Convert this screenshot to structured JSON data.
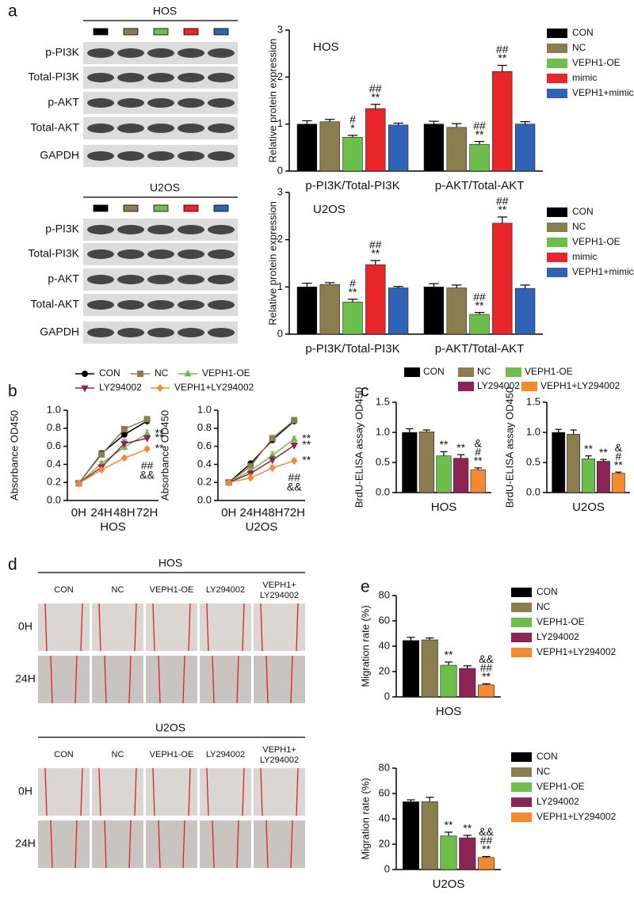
{
  "panel_labels": [
    "a",
    "b",
    "c",
    "d",
    "e"
  ],
  "western_blots": [
    {
      "title": "HOS",
      "rows": [
        "p-PI3K",
        "Total-PI3K",
        "p-AKT",
        "Total-AKT",
        "GAPDH"
      ]
    },
    {
      "title": "U2OS",
      "rows": [
        "p-PI3K",
        "Total-PI3K",
        "p-AKT",
        "Total-AKT",
        "GAPDH"
      ]
    }
  ],
  "wound_assay": [
    {
      "title": "HOS",
      "columns": [
        "CON",
        "NC",
        "VEPH1-OE",
        "LY294002",
        [
          "VEPH1+",
          "LY294002"
        ]
      ],
      "rows": [
        "0H",
        "24H"
      ]
    },
    {
      "title": "U2OS",
      "columns": [
        "CON",
        "NC",
        "VEPH1-OE",
        "LY294002",
        [
          "VEPH1+",
          "LY294002"
        ]
      ],
      "rows": [
        "0H",
        "24H"
      ]
    }
  ],
  "chart_data": [
    {
      "type": "bar",
      "annotation": "HOS",
      "ylabel": "Relative protein expression",
      "categories": [
        "p-PI3K/Total-PI3K",
        "p-AKT/Total-AKT"
      ],
      "ylim": [
        0,
        3
      ],
      "yticks": [
        0,
        1,
        2,
        3
      ],
      "legend": "right",
      "series": [
        {
          "name": "CON",
          "color": "#000000",
          "values": [
            1.0,
            1.0
          ],
          "errors": [
            0.07,
            0.06
          ]
        },
        {
          "name": "NC",
          "color": "#8b7d4e",
          "values": [
            1.05,
            0.93
          ],
          "errors": [
            0.05,
            0.08
          ]
        },
        {
          "name": "VEPH1-OE",
          "color": "#6cc04a",
          "values": [
            0.72,
            0.57
          ],
          "errors": [
            0.04,
            0.06
          ],
          "significance": [
            [
              "#",
              "*"
            ],
            [
              "##",
              "**"
            ]
          ]
        },
        {
          "name": "mimic",
          "color": "#e8262a",
          "values": [
            1.33,
            2.12
          ],
          "errors": [
            0.09,
            0.13
          ],
          "significance": [
            [
              "##",
              "**"
            ],
            [
              "##",
              "**"
            ]
          ]
        },
        {
          "name": "VEPH1+mimic",
          "color": "#2f63b6",
          "values": [
            0.98,
            1.0
          ],
          "errors": [
            0.04,
            0.05
          ]
        }
      ]
    },
    {
      "type": "bar",
      "annotation": "U2OS",
      "ylabel": "Relative protein expression",
      "categories": [
        "p-PI3K/Total-PI3K",
        "p-AKT/Total-AKT"
      ],
      "ylim": [
        0,
        3
      ],
      "yticks": [
        0,
        1,
        2,
        3
      ],
      "legend": "right",
      "series": [
        {
          "name": "CON",
          "color": "#000000",
          "values": [
            1.0,
            1.0
          ],
          "errors": [
            0.08,
            0.07
          ]
        },
        {
          "name": "NC",
          "color": "#8b7d4e",
          "values": [
            1.05,
            0.98
          ],
          "errors": [
            0.04,
            0.06
          ]
        },
        {
          "name": "VEPH1-OE",
          "color": "#6cc04a",
          "values": [
            0.68,
            0.42
          ],
          "errors": [
            0.06,
            0.04
          ],
          "significance": [
            [
              "#",
              "**"
            ],
            [
              "##",
              "**"
            ]
          ]
        },
        {
          "name": "mimic",
          "color": "#e8262a",
          "values": [
            1.47,
            2.35
          ],
          "errors": [
            0.09,
            0.13
          ],
          "significance": [
            [
              "##",
              "**"
            ],
            [
              "##",
              "**"
            ]
          ]
        },
        {
          "name": "VEPH1+mimic",
          "color": "#2f63b6",
          "values": [
            0.98,
            0.97
          ],
          "errors": [
            0.03,
            0.07
          ]
        }
      ]
    },
    {
      "type": "line",
      "xlabel": "HOS",
      "ylabel": "Absorbance OD450",
      "categories": [
        "0H",
        "24H",
        "48H",
        "72H"
      ],
      "ylim": [
        0,
        1
      ],
      "yticks": [
        {
          "value": 0,
          "label": "0.0"
        },
        0.2,
        0.4,
        0.6,
        0.8,
        {
          "value": 1,
          "label": "1.0"
        }
      ],
      "legend": "top",
      "series": [
        {
          "name": "CON",
          "color": "#000000",
          "marker": "circle",
          "values": [
            0.19,
            0.52,
            0.73,
            0.88
          ],
          "errors": [
            0.02,
            0.03,
            0.03,
            0.04
          ]
        },
        {
          "name": "NC",
          "color": "#8b7d4e",
          "marker": "square",
          "values": [
            0.19,
            0.51,
            0.79,
            0.9
          ],
          "errors": [
            0.02,
            0.03,
            0.03,
            0.03
          ]
        },
        {
          "name": "VEPH1-OE",
          "color": "#6cc04a",
          "marker": "triangle-up",
          "values": [
            0.19,
            0.41,
            0.59,
            0.74
          ],
          "errors": [
            0.02,
            0.02,
            0.04,
            0.04
          ],
          "end_labels": [
            "**"
          ]
        },
        {
          "name": "LY294002",
          "color": "#8e2356",
          "marker": "triangle-down",
          "values": [
            0.19,
            0.37,
            0.63,
            0.69
          ],
          "errors": [
            0.02,
            0.02,
            0.04,
            0.03
          ],
          "end_labels": [
            "**"
          ]
        },
        {
          "name": "VEPH1+LY294002",
          "color": "#f5892e",
          "marker": "diamond",
          "values": [
            0.19,
            0.34,
            0.47,
            0.57
          ],
          "errors": [
            0.02,
            0.02,
            0.02,
            0.02
          ],
          "end_labels": [
            "**",
            "##",
            "&&"
          ]
        }
      ]
    },
    {
      "type": "line",
      "xlabel": "U2OS",
      "ylabel": "Absorbance OD450",
      "categories": [
        "0H",
        "24H",
        "48H",
        "72H"
      ],
      "ylim": [
        0,
        1
      ],
      "yticks": [
        {
          "value": 0,
          "label": "0.0"
        },
        0.2,
        0.4,
        0.6,
        0.8,
        {
          "value": 1,
          "label": "1.0"
        }
      ],
      "legend": "none",
      "series": [
        {
          "name": "CON",
          "color": "#000000",
          "marker": "circle",
          "values": [
            0.2,
            0.41,
            0.67,
            0.88
          ],
          "errors": [
            0.02,
            0.02,
            0.03,
            0.04
          ]
        },
        {
          "name": "NC",
          "color": "#8b7d4e",
          "marker": "square",
          "values": [
            0.2,
            0.38,
            0.69,
            0.89
          ],
          "errors": [
            0.02,
            0.02,
            0.02,
            0.03
          ]
        },
        {
          "name": "VEPH1-OE",
          "color": "#6cc04a",
          "marker": "triangle-up",
          "values": [
            0.2,
            0.33,
            0.5,
            0.68
          ],
          "errors": [
            0.02,
            0.03,
            0.04,
            0.03
          ],
          "end_labels": [
            "**"
          ]
        },
        {
          "name": "LY294002",
          "color": "#8e2356",
          "marker": "triangle-down",
          "values": [
            0.2,
            0.3,
            0.45,
            0.61
          ],
          "errors": [
            0.02,
            0.03,
            0.04,
            0.03
          ],
          "end_labels": [
            "**"
          ]
        },
        {
          "name": "VEPH1+LY294002",
          "color": "#f5892e",
          "marker": "diamond",
          "values": [
            0.2,
            0.25,
            0.36,
            0.44
          ],
          "errors": [
            0.02,
            0.04,
            0.03,
            0.02
          ],
          "end_labels": [
            "**",
            "##",
            "&&"
          ]
        }
      ]
    },
    {
      "type": "bar",
      "ylabel": "BrdU-ELISA assay OD450",
      "categories": [
        "HOS"
      ],
      "ylim": [
        0,
        1.5
      ],
      "yticks": [
        {
          "value": 0,
          "label": "0.0"
        },
        0.5,
        {
          "value": 1,
          "label": "1.0"
        },
        1.5
      ],
      "legend": "top",
      "series": [
        {
          "name": "CON",
          "color": "#000000",
          "values": [
            1.0
          ],
          "errors": [
            0.06
          ]
        },
        {
          "name": "NC",
          "color": "#8b7d4e",
          "values": [
            1.01
          ],
          "errors": [
            0.03
          ]
        },
        {
          "name": "VEPH1-OE",
          "color": "#6cc04a",
          "values": [
            0.61
          ],
          "errors": [
            0.07
          ],
          "significance": [
            [
              "**"
            ]
          ]
        },
        {
          "name": "LY294002",
          "color": "#8e2356",
          "values": [
            0.57
          ],
          "errors": [
            0.06
          ],
          "significance": [
            [
              "**"
            ]
          ]
        },
        {
          "name": "VEPH1+LY294002",
          "color": "#f5892e",
          "values": [
            0.38
          ],
          "errors": [
            0.03
          ],
          "significance": [
            [
              "&",
              "#",
              "**"
            ]
          ]
        }
      ]
    },
    {
      "type": "bar",
      "ylabel": "BrdU-ELISA assay OD450",
      "categories": [
        "U2OS"
      ],
      "ylim": [
        0,
        1.5
      ],
      "yticks": [
        {
          "value": 0,
          "label": "0.0"
        },
        0.5,
        {
          "value": 1,
          "label": "1.0"
        },
        1.5
      ],
      "legend": "none",
      "series": [
        {
          "name": "CON",
          "color": "#000000",
          "values": [
            1.0
          ],
          "errors": [
            0.05
          ]
        },
        {
          "name": "NC",
          "color": "#8b7d4e",
          "values": [
            0.97
          ],
          "errors": [
            0.07
          ]
        },
        {
          "name": "VEPH1-OE",
          "color": "#6cc04a",
          "values": [
            0.56
          ],
          "errors": [
            0.05
          ],
          "significance": [
            [
              "**"
            ]
          ]
        },
        {
          "name": "LY294002",
          "color": "#8e2356",
          "values": [
            0.52
          ],
          "errors": [
            0.03
          ],
          "significance": [
            [
              "**"
            ]
          ]
        },
        {
          "name": "VEPH1+LY294002",
          "color": "#f5892e",
          "values": [
            0.32
          ],
          "errors": [
            0.02
          ],
          "significance": [
            [
              "&",
              "#",
              "**"
            ]
          ]
        }
      ]
    },
    {
      "type": "bar",
      "ylabel": "Migration rate (%)",
      "categories": [
        "HOS"
      ],
      "ylim": [
        0,
        80
      ],
      "yticks": [
        0,
        20,
        40,
        60,
        80
      ],
      "legend": "right",
      "series": [
        {
          "name": "CON",
          "color": "#000000",
          "values": [
            44.5
          ],
          "errors": [
            2.5
          ]
        },
        {
          "name": "NC",
          "color": "#8b7d4e",
          "values": [
            45
          ],
          "errors": [
            1.5
          ]
        },
        {
          "name": "VEPH1-OE",
          "color": "#6cc04a",
          "values": [
            25
          ],
          "errors": [
            2.5
          ],
          "significance": [
            [
              "**"
            ]
          ]
        },
        {
          "name": "LY294002",
          "color": "#8e2356",
          "values": [
            22.5
          ],
          "errors": [
            2
          ]
        },
        {
          "name": "VEPH1+LY294002",
          "color": "#f5892e",
          "values": [
            9.5
          ],
          "errors": [
            0.8
          ],
          "significance": [
            [
              "&&",
              "##",
              "**"
            ]
          ]
        }
      ]
    },
    {
      "type": "bar",
      "ylabel": "Migration rate (%)",
      "categories": [
        "U2OS"
      ],
      "ylim": [
        0,
        80
      ],
      "yticks": [
        0,
        20,
        40,
        60,
        80
      ],
      "legend": "right",
      "series": [
        {
          "name": "CON",
          "color": "#000000",
          "values": [
            53.5
          ],
          "errors": [
            1.5
          ]
        },
        {
          "name": "NC",
          "color": "#8b7d4e",
          "values": [
            53.5
          ],
          "errors": [
            3.5
          ]
        },
        {
          "name": "VEPH1-OE",
          "color": "#6cc04a",
          "values": [
            26.5
          ],
          "errors": [
            3
          ],
          "significance": [
            [
              "**"
            ]
          ]
        },
        {
          "name": "LY294002",
          "color": "#8e2356",
          "values": [
            25
          ],
          "errors": [
            2
          ],
          "significance": [
            [
              "**"
            ]
          ]
        },
        {
          "name": "VEPH1+LY294002",
          "color": "#f5892e",
          "values": [
            9.5
          ],
          "errors": [
            0.8
          ],
          "significance": [
            [
              "&&",
              "##",
              "**"
            ]
          ]
        }
      ]
    }
  ]
}
